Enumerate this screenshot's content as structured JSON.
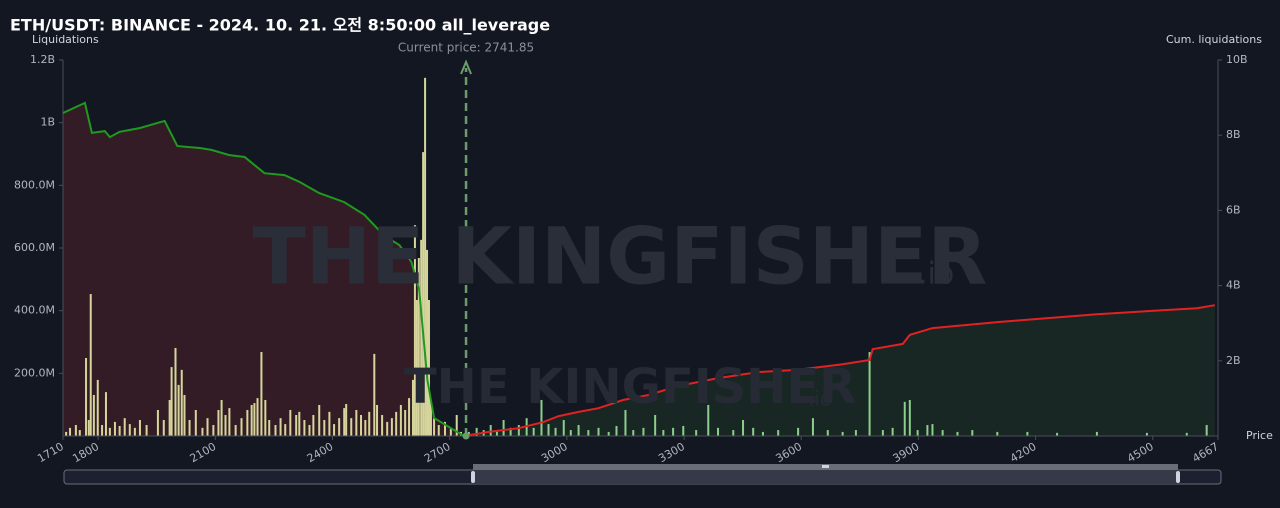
{
  "chart_data": {
    "type": "combo",
    "title": "ETH/USDT: BINANCE - 2024. 10. 21. 오전 8:50:00 all_leverage",
    "ylabel": "Liquidations",
    "y2label": "Cum. liquidations",
    "xlabel": "Price",
    "watermark": {
      "text": "THE KINGFISHER",
      "suffix": ".io"
    },
    "current_price": {
      "value": 2741.85,
      "label": "Current price: 2741.85"
    },
    "xlim": [
      1710,
      4667
    ],
    "xticks": [
      1710,
      1800,
      2100,
      2400,
      2700,
      3000,
      3300,
      3600,
      3900,
      4200,
      4500,
      4667
    ],
    "ylim": [
      0,
      1200000000
    ],
    "yticks": [
      {
        "value": 200000000,
        "label": "200.0M"
      },
      {
        "value": 400000000,
        "label": "400.0M"
      },
      {
        "value": 600000000,
        "label": "600.0M"
      },
      {
        "value": 800000000,
        "label": "800.0M"
      },
      {
        "value": 1000000000,
        "label": "1B"
      },
      {
        "value": 1200000000,
        "label": "1.2B"
      }
    ],
    "y2lim": [
      0,
      10000000000
    ],
    "y2ticks": [
      {
        "value": 2000000000,
        "label": "2B"
      },
      {
        "value": 4000000000,
        "label": "4B"
      },
      {
        "value": 6000000000,
        "label": "6B"
      },
      {
        "value": 8000000000,
        "label": "8B"
      },
      {
        "value": 10000000000,
        "label": "10B"
      }
    ],
    "series": [
      {
        "type": "bar",
        "color": "#d6d69c",
        "x": [
          1718,
          1728,
          1743,
          1753,
          1769,
          1776,
          1781,
          1789,
          1799,
          1810,
          1820,
          1830,
          1843,
          1855,
          1868,
          1881,
          1894,
          1907,
          1924,
          1953,
          1968,
          1983,
          1988,
          1998,
          2006,
          2014,
          2021,
          2034,
          2050,
          2067,
          2080,
          2095,
          2108,
          2116,
          2126,
          2136,
          2152,
          2167,
          2182,
          2193,
          2200,
          2208,
          2218,
          2228,
          2238,
          2254,
          2267,
          2279,
          2292,
          2307,
          2315,
          2328,
          2341,
          2351,
          2366,
          2379,
          2392,
          2404,
          2417,
          2430,
          2435,
          2448,
          2461,
          2473,
          2484,
          2494,
          2507,
          2514,
          2527,
          2540,
          2552,
          2563,
          2575,
          2586,
          2596,
          2606,
          2611,
          2616,
          2621,
          2627,
          2632,
          2637,
          2642,
          2647,
          2652,
          2660,
          2672,
          2688,
          2703,
          2718,
          2729
        ],
        "values": [
          13000000,
          26000000,
          35000000,
          19000000,
          249000000,
          51000000,
          453000000,
          131000000,
          179000000,
          35000000,
          140000000,
          26000000,
          45000000,
          32000000,
          57000000,
          38000000,
          26000000,
          51000000,
          35000000,
          83000000,
          51000000,
          115000000,
          220000000,
          281000000,
          163000000,
          211000000,
          131000000,
          51000000,
          83000000,
          26000000,
          57000000,
          35000000,
          83000000,
          115000000,
          67000000,
          89000000,
          35000000,
          57000000,
          83000000,
          99000000,
          105000000,
          121000000,
          268000000,
          115000000,
          51000000,
          35000000,
          57000000,
          38000000,
          83000000,
          67000000,
          77000000,
          51000000,
          35000000,
          67000000,
          99000000,
          51000000,
          77000000,
          38000000,
          57000000,
          89000000,
          102000000,
          57000000,
          83000000,
          67000000,
          51000000,
          77000000,
          262000000,
          99000000,
          67000000,
          45000000,
          57000000,
          77000000,
          99000000,
          83000000,
          121000000,
          179000000,
          673000000,
          434000000,
          568000000,
          626000000,
          906000000,
          1143000000,
          594000000,
          434000000,
          115000000,
          57000000,
          35000000,
          45000000,
          26000000,
          67000000,
          13000000
        ]
      },
      {
        "type": "bar",
        "color": "#8ccf8c",
        "x": [
          2749,
          2769,
          2787,
          2805,
          2821,
          2838,
          2856,
          2877,
          2897,
          2915,
          2935,
          2953,
          2971,
          2992,
          3010,
          3030,
          3055,
          3081,
          3107,
          3127,
          3150,
          3170,
          3196,
          3226,
          3247,
          3272,
          3298,
          3331,
          3362,
          3387,
          3426,
          3451,
          3477,
          3502,
          3541,
          3592,
          3630,
          3668,
          3706,
          3740,
          3775,
          3809,
          3834,
          3865,
          3878,
          3898,
          3923,
          3936,
          3962,
          4000,
          4038,
          4102,
          4179,
          4255,
          4357,
          4485,
          4587,
          4638
        ],
        "values": [
          13000000,
          26000000,
          19000000,
          35000000,
          19000000,
          51000000,
          26000000,
          35000000,
          57000000,
          26000000,
          115000000,
          38000000,
          26000000,
          51000000,
          19000000,
          35000000,
          19000000,
          26000000,
          13000000,
          32000000,
          83000000,
          19000000,
          26000000,
          67000000,
          19000000,
          26000000,
          32000000,
          19000000,
          99000000,
          26000000,
          19000000,
          51000000,
          26000000,
          13000000,
          19000000,
          26000000,
          57000000,
          19000000,
          13000000,
          19000000,
          268000000,
          19000000,
          26000000,
          109000000,
          115000000,
          19000000,
          35000000,
          38000000,
          19000000,
          13000000,
          19000000,
          13000000,
          13000000,
          10000000,
          13000000,
          10000000,
          10000000,
          35000000
        ]
      },
      {
        "type": "line",
        "axis": "y2",
        "color": "#1f9a1f",
        "fill": "#3a1d26",
        "x": [
          1710,
          1766,
          1784,
          1817,
          1830,
          1855,
          1906,
          1970,
          2003,
          2060,
          2090,
          2136,
          2175,
          2226,
          2277,
          2315,
          2366,
          2430,
          2482,
          2533,
          2571,
          2602,
          2622,
          2643,
          2660,
          2711,
          2736
        ],
        "values": [
          8590000000,
          8860000000,
          8060000000,
          8110000000,
          7950000000,
          8090000000,
          8190000000,
          8380000000,
          7710000000,
          7660000000,
          7610000000,
          7470000000,
          7420000000,
          6990000000,
          6940000000,
          6760000000,
          6460000000,
          6220000000,
          5880000000,
          5320000000,
          5080000000,
          4630000000,
          3880000000,
          1490000000,
          480000000,
          160000000,
          0
        ]
      },
      {
        "type": "line",
        "axis": "y2",
        "color": "#e02222",
        "fill": "#1a2a24",
        "x": [
          2736,
          2800,
          2877,
          2940,
          2979,
          3030,
          3081,
          3145,
          3209,
          3285,
          3387,
          3489,
          3592,
          3706,
          3775,
          3783,
          3860,
          3878,
          3936,
          4102,
          4357,
          4613,
          4659
        ],
        "values": [
          0,
          110000000,
          210000000,
          370000000,
          530000000,
          640000000,
          740000000,
          960000000,
          1090000000,
          1330000000,
          1540000000,
          1700000000,
          1760000000,
          1910000000,
          2020000000,
          2310000000,
          2450000000,
          2690000000,
          2870000000,
          3030000000,
          3240000000,
          3400000000,
          3480000000
        ]
      }
    ]
  }
}
